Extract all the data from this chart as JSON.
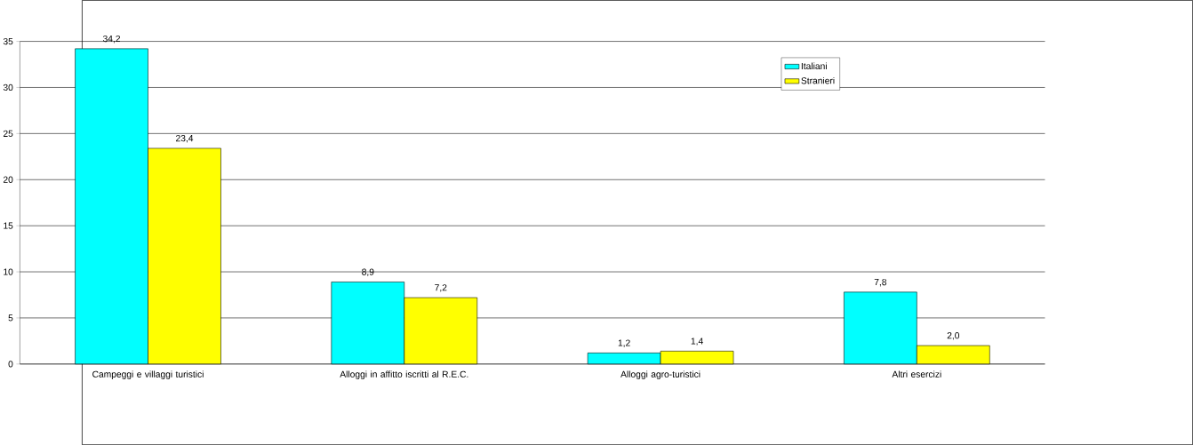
{
  "chart_data": {
    "type": "bar",
    "categories": [
      "Campeggi e villaggi turistici",
      "Alloggi in affitto iscritti al R.E.C.",
      "Alloggi agro-turistici",
      "Altri esercizi"
    ],
    "series": [
      {
        "name": "Italiani",
        "color": "#00ffff",
        "values": [
          34.2,
          8.9,
          1.2,
          7.8
        ],
        "value_labels": [
          "34,2",
          "8,9",
          "1,2",
          "7,8"
        ]
      },
      {
        "name": "Stranieri",
        "color": "#ffff00",
        "values": [
          23.4,
          7.2,
          1.4,
          2.0
        ],
        "value_labels": [
          "23,4",
          "7,2",
          "1,4",
          "2,0"
        ]
      }
    ],
    "ylim": [
      0,
      35
    ],
    "yticks": [
      0,
      5,
      10,
      15,
      20,
      25,
      30,
      35
    ],
    "grid": "y",
    "legend": "top right"
  }
}
